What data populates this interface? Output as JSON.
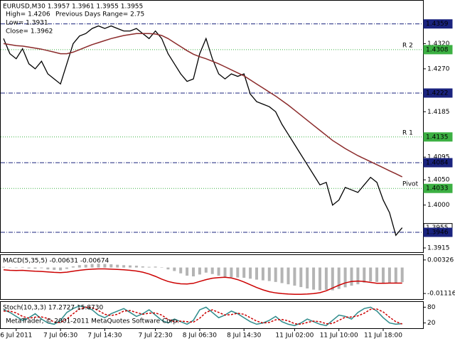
{
  "chart_data": [
    {
      "type": "line",
      "title": "EURUSD,M30  1.3957 1.3961 1.3955 1.3955",
      "annotations": [
        "High= 1.4206",
        "Previous Days Range= 2.75",
        "Low= 1.3931",
        "Close= 1.3962"
      ],
      "categories": [
        null,
        null,
        "6 Jul 2011",
        null,
        null,
        null,
        null,
        null,
        null,
        "7 Jul 06:30",
        null,
        null,
        null,
        null,
        null,
        null,
        "7 Jul 14:30",
        null,
        null,
        null,
        null,
        null,
        null,
        null,
        "7 Jul 22:30",
        null,
        null,
        null,
        null,
        null,
        null,
        "8 Jul 06:30",
        null,
        null,
        null,
        null,
        null,
        null,
        "8 Jul 14:30",
        null,
        null,
        null,
        null,
        null,
        null,
        null,
        "11 Jul 02:00",
        null,
        null,
        null,
        null,
        null,
        null,
        "11 Jul 10:00",
        null,
        null,
        null,
        null,
        null,
        null,
        "11 Jul 18:00",
        null,
        null,
        null
      ],
      "series": [
        {
          "name": "Price",
          "type": "line",
          "color": "#000000",
          "values": [
            1.433,
            1.43,
            1.429,
            1.431,
            1.428,
            1.427,
            1.4285,
            1.426,
            1.425,
            1.424,
            1.428,
            1.432,
            1.4335,
            1.434,
            1.435,
            1.4355,
            1.435,
            1.4355,
            1.435,
            1.4345,
            1.4345,
            1.435,
            1.434,
            1.433,
            1.4345,
            1.433,
            1.43,
            1.428,
            1.426,
            1.4245,
            1.425,
            1.43,
            1.433,
            1.429,
            1.426,
            1.425,
            1.426,
            1.4255,
            1.426,
            1.422,
            1.4205,
            1.42,
            1.4195,
            1.4185,
            1.416,
            1.414,
            1.412,
            1.41,
            1.408,
            1.406,
            1.404,
            1.4045,
            1.4,
            1.401,
            1.4035,
            1.403,
            1.4025,
            1.404,
            1.4055,
            1.4045,
            1.401,
            1.3985,
            1.394,
            1.3955
          ]
        },
        {
          "name": "MA",
          "type": "line",
          "color": "#8b2a2a",
          "values": [
            1.432,
            1.4318,
            1.4316,
            1.4315,
            1.4313,
            1.4311,
            1.4309,
            1.4306,
            1.4303,
            1.43,
            1.43,
            1.4303,
            1.4308,
            1.4313,
            1.4318,
            1.4322,
            1.4326,
            1.433,
            1.4333,
            1.4336,
            1.4338,
            1.434,
            1.434,
            1.434,
            1.4339,
            1.4336,
            1.433,
            1.4322,
            1.4314,
            1.4306,
            1.4299,
            1.4294,
            1.429,
            1.4285,
            1.428,
            1.4274,
            1.4268,
            1.4262,
            1.4256,
            1.4248,
            1.424,
            1.4232,
            1.4224,
            1.4216,
            1.4207,
            1.4198,
            1.4188,
            1.4178,
            1.4168,
            1.4158,
            1.4148,
            1.4138,
            1.4128,
            1.412,
            1.4112,
            1.4105,
            1.4098,
            1.4092,
            1.4086,
            1.408,
            1.4074,
            1.4068,
            1.4062,
            1.4056
          ]
        }
      ],
      "levels": [
        {
          "value": 1.4359,
          "color": "#1a237e",
          "style": "dashdot"
        },
        {
          "value": 1.4308,
          "color": "#3cb043",
          "style": "dotted",
          "label": "R 2",
          "label_color": "#e8a040"
        },
        {
          "value": 1.4222,
          "color": "#1a237e",
          "style": "dashdot"
        },
        {
          "value": 1.4135,
          "color": "#3cb043",
          "style": "dotted",
          "label": "R 1",
          "label_color": "#e8a040"
        },
        {
          "value": 1.4084,
          "color": "#1a237e",
          "style": "dashdot"
        },
        {
          "value": 1.4033,
          "color": "#3cb043",
          "style": "dotted",
          "label": "Pivot",
          "label_color": "#e8a040"
        },
        {
          "value": 1.3955,
          "color": "#ffffff",
          "style": "none"
        },
        {
          "value": 1.3946,
          "color": "#1a237e",
          "style": "dashdot"
        }
      ],
      "ylim": [
        1.3908,
        1.4405
      ],
      "yticks": [
        {
          "value": 1.432,
          "label": "1.4320"
        },
        {
          "value": 1.427,
          "label": "1.4270"
        },
        1.4185,
        1.4095,
        {
          "value": 1.405,
          "label": "1.4050"
        },
        {
          "value": 1.4,
          "label": "1.4000"
        },
        1.3915
      ]
    },
    {
      "type": "bar",
      "title": "MACD(5,35,5) -0.00631 -0.00674",
      "series": [
        {
          "name": "MACD",
          "type": "bar",
          "color": "#b4b4b4",
          "values": [
            0.0003,
            0.0001,
            -0.0002,
            0.0002,
            -0.0004,
            -0.0005,
            -0.0003,
            -0.0008,
            -0.001,
            -0.0012,
            -0.0006,
            0.0005,
            0.001,
            0.0012,
            0.0015,
            0.0016,
            0.0015,
            0.0014,
            0.0012,
            0.001,
            0.0009,
            0.0008,
            0.0005,
            0.0003,
            0.0004,
            0.0001,
            -0.0008,
            -0.0015,
            -0.0025,
            -0.0035,
            -0.0038,
            -0.003,
            -0.0022,
            -0.0028,
            -0.0035,
            -0.004,
            -0.0042,
            -0.0043,
            -0.0044,
            -0.0048,
            -0.0052,
            -0.0055,
            -0.0058,
            -0.0062,
            -0.0067,
            -0.0072,
            -0.0078,
            -0.0084,
            -0.009,
            -0.0095,
            -0.0098,
            -0.0096,
            -0.0098,
            -0.0092,
            -0.0085,
            -0.0078,
            -0.0072,
            -0.0065,
            -0.006,
            -0.0062,
            -0.0066,
            -0.0068,
            -0.0066,
            -0.0063
          ]
        },
        {
          "name": "Signal",
          "type": "line",
          "color": "#cc0000",
          "values": [
            -0.001,
            -0.0012,
            -0.0013,
            -0.0012,
            -0.0014,
            -0.0016,
            -0.0017,
            -0.0019,
            -0.0021,
            -0.0022,
            -0.002,
            -0.0016,
            -0.0012,
            -0.0009,
            -0.0007,
            -0.0006,
            -0.0006,
            -0.0007,
            -0.0008,
            -0.001,
            -0.0012,
            -0.0015,
            -0.002,
            -0.0028,
            -0.0038,
            -0.005,
            -0.006,
            -0.0066,
            -0.007,
            -0.0071,
            -0.0068,
            -0.006,
            -0.0052,
            -0.0046,
            -0.0043,
            -0.0042,
            -0.0045,
            -0.0052,
            -0.0062,
            -0.0074,
            -0.0086,
            -0.0096,
            -0.0104,
            -0.0109,
            -0.0112,
            -0.0114,
            -0.0115,
            -0.0115,
            -0.0114,
            -0.0112,
            -0.0108,
            -0.01,
            -0.0088,
            -0.0076,
            -0.0066,
            -0.006,
            -0.0058,
            -0.006,
            -0.0064,
            -0.0068,
            -0.0068,
            -0.0067,
            -0.0067,
            -0.0067
          ]
        }
      ],
      "ylim": [
        -0.01356,
        0.00536
      ],
      "yticks": [
        0.00326,
        -0.01116
      ]
    },
    {
      "type": "line",
      "title": "Stoch(10,3,3) 17.2727 15.8730",
      "series": [
        {
          "name": "Main",
          "type": "line",
          "color": "#2e8b8b",
          "values": [
            70,
            60,
            45,
            30,
            40,
            55,
            35,
            20,
            15,
            30,
            60,
            75,
            85,
            80,
            70,
            50,
            40,
            55,
            65,
            75,
            60,
            45,
            55,
            70,
            50,
            30,
            20,
            35,
            25,
            15,
            30,
            70,
            80,
            60,
            40,
            50,
            65,
            55,
            40,
            25,
            15,
            20,
            30,
            45,
            25,
            15,
            10,
            20,
            35,
            25,
            15,
            10,
            30,
            50,
            45,
            35,
            60,
            75,
            80,
            65,
            40,
            20,
            15,
            17.2727
          ]
        },
        {
          "name": "Signal",
          "type": "line",
          "color": "#cc0000",
          "dashed": true,
          "values": [
            65,
            65,
            58,
            45,
            38,
            42,
            43,
            37,
            23,
            22,
            35,
            55,
            73,
            80,
            78,
            67,
            53,
            48,
            53,
            65,
            67,
            60,
            53,
            57,
            58,
            50,
            33,
            25,
            27,
            25,
            23,
            38,
            60,
            70,
            60,
            50,
            52,
            57,
            53,
            40,
            27,
            20,
            22,
            32,
            33,
            28,
            17,
            15,
            22,
            27,
            25,
            17,
            18,
            30,
            42,
            43,
            47,
            57,
            72,
            73,
            62,
            42,
            25,
            15.873
          ]
        }
      ],
      "ylim": [
        0,
        100
      ],
      "yticks": [
        80,
        20
      ]
    }
  ],
  "copyright": "MetaTrader, © 2001-2011 MetaQuotes Software Corp."
}
